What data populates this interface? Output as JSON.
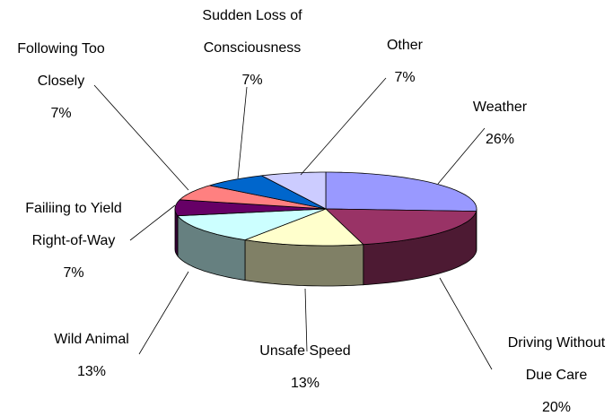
{
  "chart_data": {
    "type": "pie3d",
    "categories": [
      "Weather",
      "Driving Without Due Care",
      "Unsafe Speed",
      "Wild Animal",
      "Failiing to Yield Right-of-Way",
      "Following Too Closely",
      "Sudden Loss of Consciousness",
      "Other"
    ],
    "values": [
      26,
      20,
      13,
      13,
      7,
      7,
      7,
      7
    ],
    "value_labels": [
      "26%",
      "20%",
      "13%",
      "13%",
      "7%",
      "7%",
      "7%",
      "7%"
    ],
    "colors": [
      "#9999FF",
      "#993366",
      "#FFFFCC",
      "#CCFFFF",
      "#660066",
      "#FF8080",
      "#0066CC",
      "#CCCCFF"
    ]
  }
}
